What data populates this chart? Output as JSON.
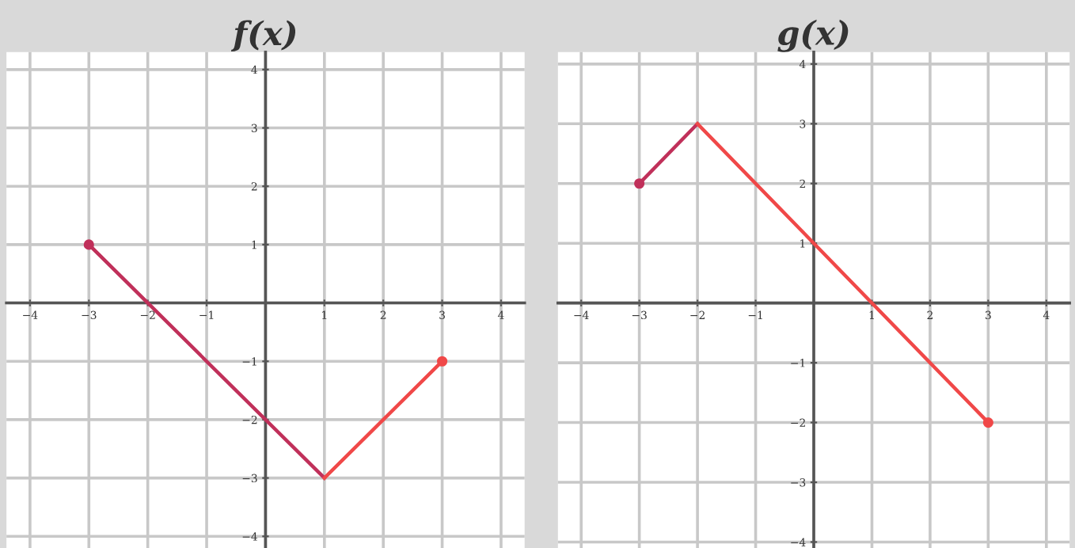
{
  "chart_data": [
    {
      "type": "line",
      "title": "f(x)",
      "xlim": [
        -4.4,
        4.4
      ],
      "ylim": [
        -4.2,
        4.3
      ],
      "xticks": [
        -4,
        -3,
        -2,
        -1,
        {
          "value": 0,
          "label": null
        },
        1,
        2,
        3,
        4
      ],
      "yticks": [
        -4,
        -3,
        -2,
        -1,
        {
          "value": 0,
          "label": null
        },
        1,
        2,
        3,
        4
      ],
      "grid": true,
      "marker": "none",
      "series": [
        {
          "x": [
            -3,
            1
          ],
          "values": [
            1,
            -3
          ],
          "color": "#c0305a"
        },
        {
          "x": [
            1,
            3
          ],
          "values": [
            -3,
            -1
          ],
          "color": "#f04848"
        },
        {
          "type": "scatter",
          "x": [
            -3,
            3
          ],
          "values": [
            1,
            -1
          ],
          "colors": [
            "#c0305a",
            "#f04848"
          ],
          "marker": "circle"
        }
      ]
    },
    {
      "type": "line",
      "title": "g(x)",
      "xlim": [
        -4.4,
        4.4
      ],
      "ylim": [
        -4.1,
        4.2
      ],
      "xticks": [
        -4,
        -3,
        -2,
        -1,
        {
          "value": 0,
          "label": null
        },
        1,
        2,
        3,
        4
      ],
      "yticks": [
        -4,
        -3,
        -2,
        -1,
        {
          "value": 0,
          "label": null
        },
        1,
        2,
        3,
        4
      ],
      "grid": true,
      "marker": "none",
      "series": [
        {
          "x": [
            -3,
            -2
          ],
          "values": [
            2,
            3
          ],
          "color": "#c0305a"
        },
        {
          "x": [
            -2,
            3
          ],
          "values": [
            3,
            -2
          ],
          "color": "#f04848"
        },
        {
          "type": "scatter",
          "x": [
            -3,
            3
          ],
          "values": [
            2,
            -2
          ],
          "colors": [
            "#c0305a",
            "#f04848"
          ],
          "marker": "circle"
        }
      ]
    }
  ]
}
